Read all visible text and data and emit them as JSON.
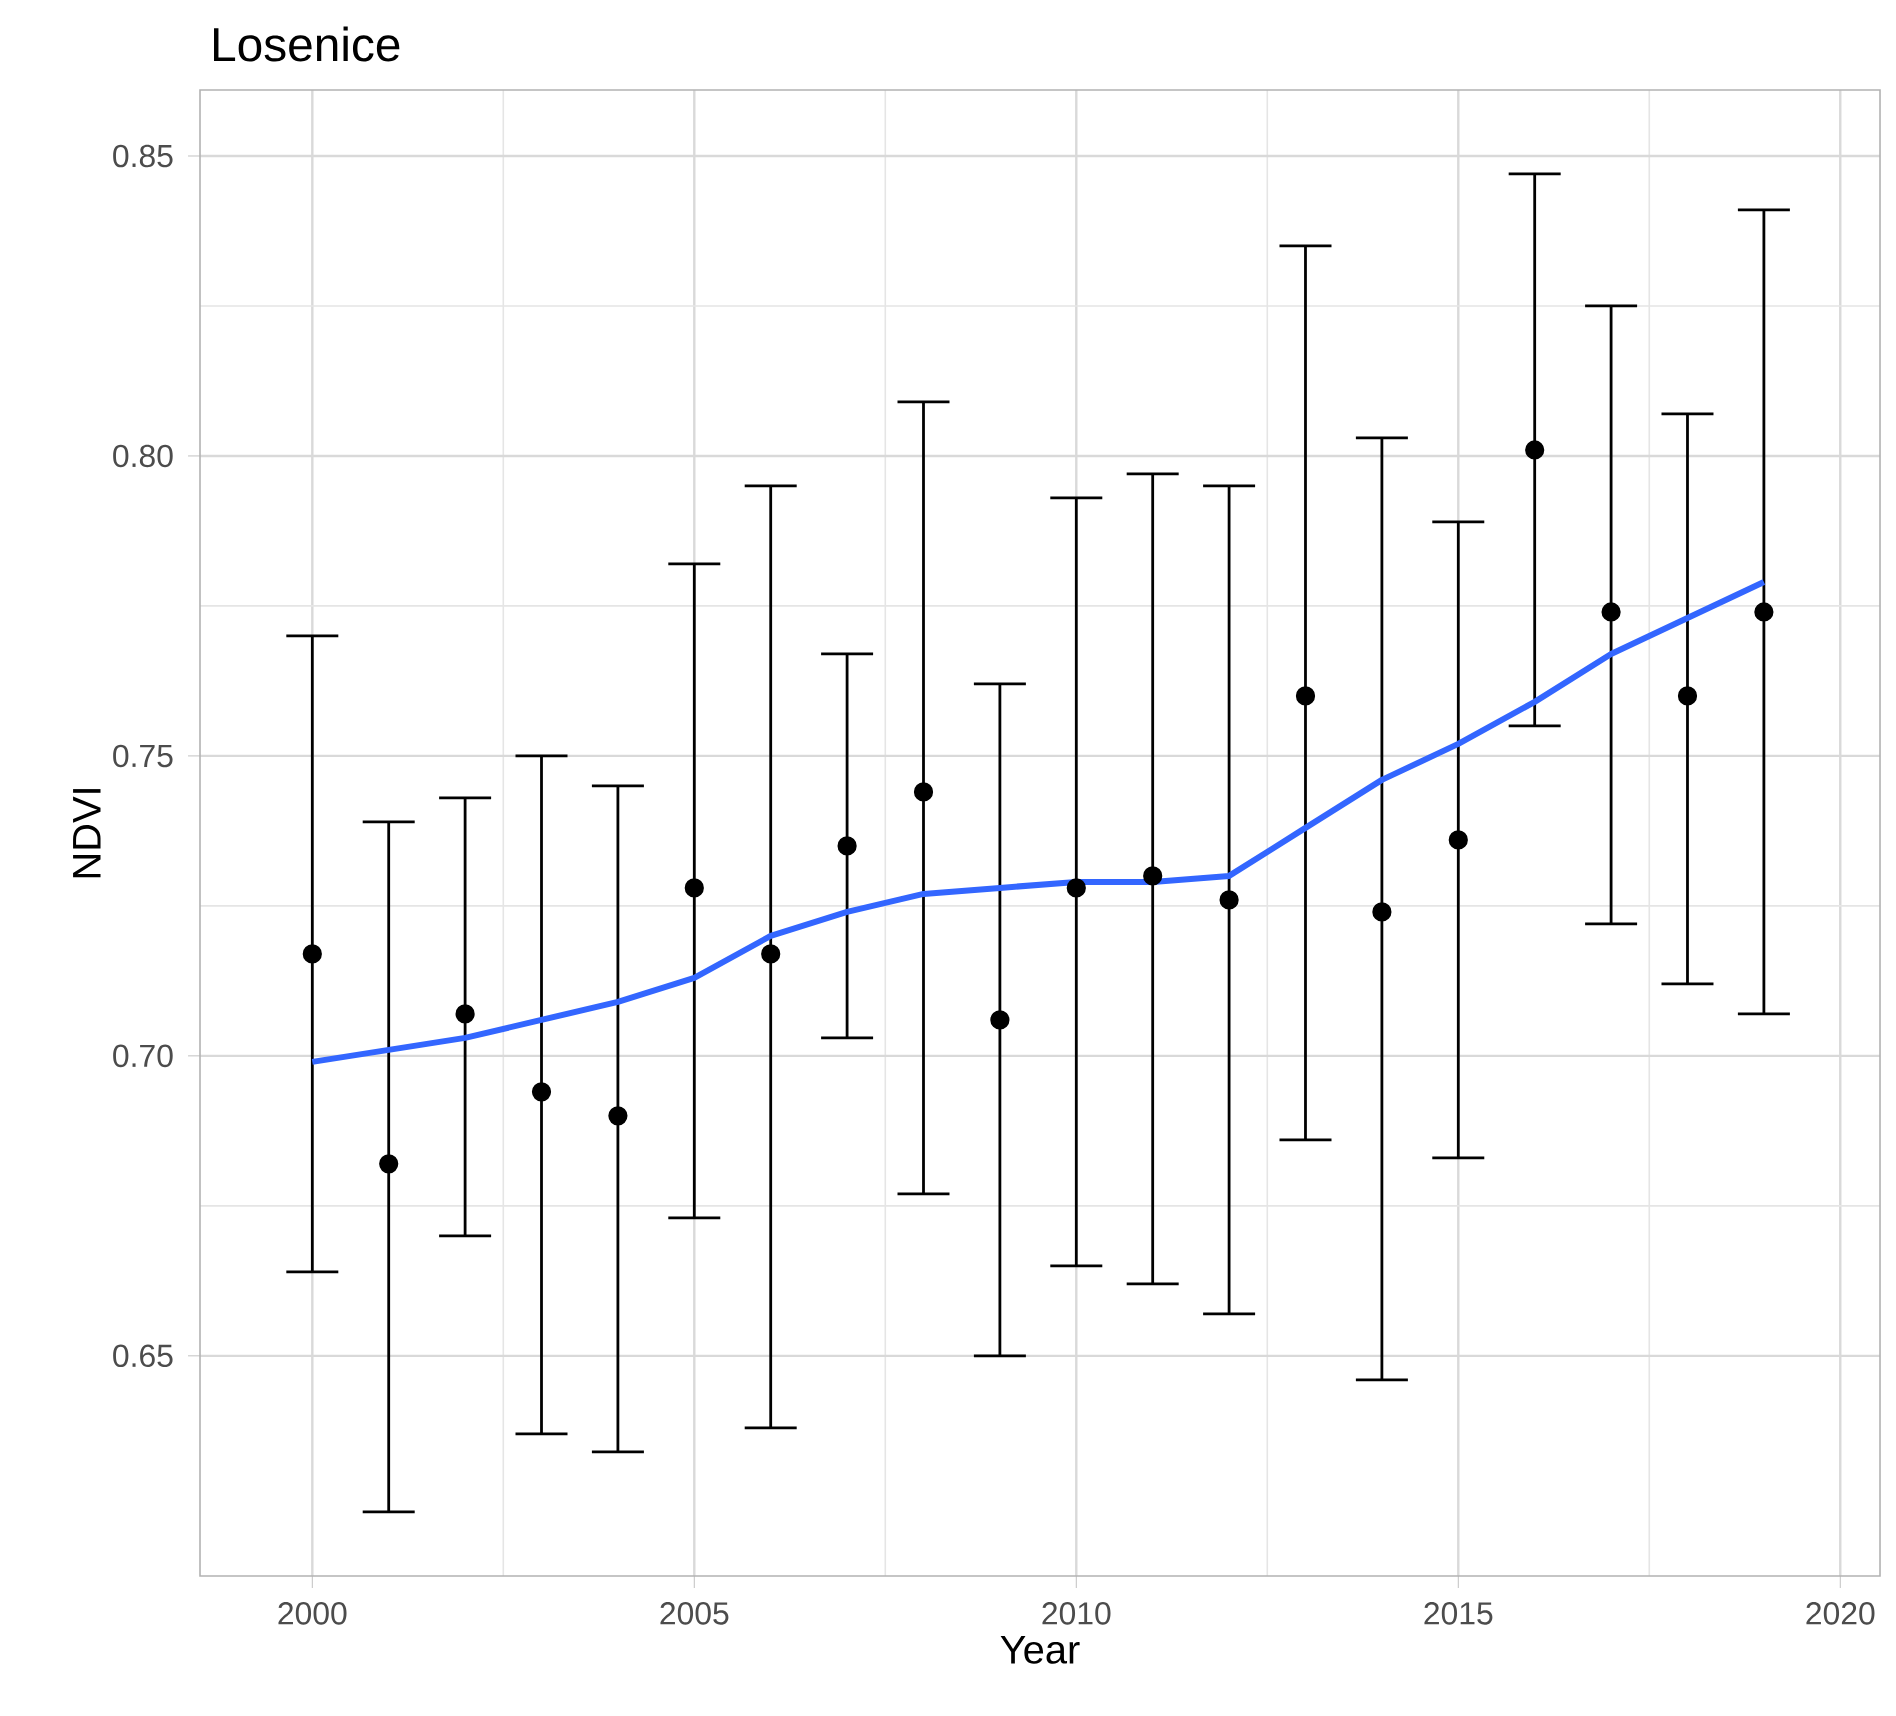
{
  "chart_data": {
    "type": "scatter",
    "title": "Losenice",
    "xlabel": "Year",
    "ylabel": "NDVI",
    "xlim": [
      1998.53,
      2020.52
    ],
    "ylim": [
      0.6133,
      0.861
    ],
    "xticks": [
      2000,
      2005,
      2010,
      2015,
      2020
    ],
    "yticks": [
      0.65,
      {
        "value": 0.7,
        "label": "0.70"
      },
      0.75,
      {
        "value": 0.8,
        "label": "0.80"
      },
      0.85
    ],
    "grid": true,
    "series": [
      {
        "color": "#000000",
        "marker": "circle",
        "x": [
          2000,
          2001,
          2002,
          2003,
          2004,
          2005,
          2006,
          2007,
          2008,
          2009,
          2010,
          2011,
          2012,
          2013,
          2014,
          2015,
          2016,
          2017,
          2018,
          2019
        ],
        "values": [
          0.717,
          0.682,
          0.707,
          0.694,
          0.69,
          0.728,
          0.717,
          0.735,
          0.744,
          0.706,
          0.728,
          0.73,
          0.726,
          0.76,
          0.724,
          0.736,
          0.801,
          0.774,
          0.76,
          0.774
        ],
        "errors": [
          [
            0.664,
            0.77
          ],
          [
            0.624,
            0.739
          ],
          [
            0.67,
            0.743
          ],
          [
            0.637,
            0.75
          ],
          [
            0.634,
            0.745
          ],
          [
            0.673,
            0.782
          ],
          [
            0.638,
            0.795
          ],
          [
            0.703,
            0.767
          ],
          [
            0.677,
            0.809
          ],
          [
            0.65,
            0.762
          ],
          [
            0.665,
            0.793
          ],
          [
            0.662,
            0.797
          ],
          [
            0.657,
            0.795
          ],
          [
            0.686,
            0.835
          ],
          [
            0.646,
            0.803
          ],
          [
            0.683,
            0.789
          ],
          [
            0.755,
            0.847
          ],
          [
            0.722,
            0.825
          ],
          [
            0.712,
            0.807
          ],
          [
            0.707,
            0.841
          ]
        ]
      },
      {
        "type": "line",
        "color": "#3366ff",
        "marker": "none",
        "line_style": "solid",
        "x": [
          2000,
          2002,
          2004,
          2005,
          2006,
          2007,
          2008,
          2009,
          2010,
          2011,
          2012,
          2013,
          2014,
          2015,
          2016,
          2017,
          2018,
          2019
        ],
        "values": [
          0.699,
          0.703,
          0.709,
          0.713,
          0.72,
          0.724,
          0.727,
          0.728,
          0.729,
          0.729,
          0.73,
          0.738,
          0.746,
          0.752,
          0.759,
          0.767,
          0.773,
          0.779
        ]
      }
    ]
  }
}
